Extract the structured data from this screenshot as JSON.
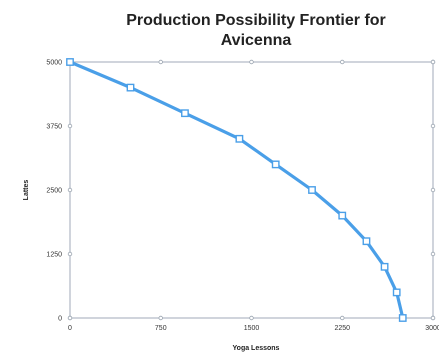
{
  "chart_data": {
    "type": "line",
    "title_lines": [
      "Production Possibility Frontier for",
      "Avicenna"
    ],
    "xlabel": "Yoga Lessons",
    "ylabel": "Lattes",
    "xlim": [
      0,
      3000
    ],
    "ylim": [
      0,
      5000
    ],
    "xticks": [
      0,
      750,
      1500,
      2250,
      3000
    ],
    "xtick_labels": [
      "0",
      "750",
      "1500",
      "2250",
      "3000"
    ],
    "yticks": [
      0,
      1250,
      2500,
      3750,
      5000
    ],
    "ytick_labels": [
      "0",
      "1250",
      "2500",
      "3750",
      "5000"
    ],
    "grid": false,
    "series": [
      {
        "color": "#4a9fe8",
        "marker": "square",
        "points": [
          {
            "x": 0,
            "y": 5000
          },
          {
            "x": 500,
            "y": 4500
          },
          {
            "x": 950,
            "y": 4000
          },
          {
            "x": 1400,
            "y": 3500
          },
          {
            "x": 1700,
            "y": 3000
          },
          {
            "x": 2000,
            "y": 2500
          },
          {
            "x": 2250,
            "y": 2000
          },
          {
            "x": 2450,
            "y": 1500
          },
          {
            "x": 2600,
            "y": 1000
          },
          {
            "x": 2700,
            "y": 500
          },
          {
            "x": 2750,
            "y": 0
          }
        ]
      }
    ]
  }
}
